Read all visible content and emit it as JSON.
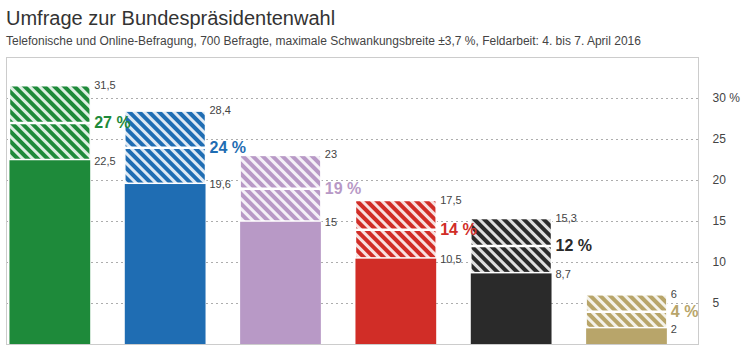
{
  "chart_data": {
    "type": "bar",
    "title": "Umfrage zur Bundespräsidentenwahl",
    "subtitle": "Telefonische und Online-Befragung, 700 Befragte, maximale Schwankungsbreite ±3,7 %, Feldarbeit: 4. bis 7. April 2016",
    "categories": [
      null,
      null,
      null,
      null,
      null,
      null
    ],
    "values": [
      27,
      24,
      19,
      14,
      12,
      4
    ],
    "value_labels": [
      "27 %",
      "24 %",
      "19 %",
      "14 %",
      "12 %",
      "4 %"
    ],
    "colors": [
      "#1e8a3a",
      "#1f6db3",
      "#b899c6",
      "#d12d27",
      "#2a2a2a",
      "#b8a56a"
    ],
    "upper": [
      31.5,
      28.4,
      23,
      17.5,
      15.3,
      6
    ],
    "upper_labels": [
      "31,5",
      "28,4",
      "23",
      "17,5",
      "15,3",
      "6"
    ],
    "lower": [
      22.5,
      19.6,
      15,
      10.5,
      8.7,
      2
    ],
    "lower_labels": [
      "22,5",
      "19,6",
      "15",
      "10,5",
      "8,7",
      "2"
    ],
    "ylim": [
      0,
      35
    ],
    "yticks": [
      5,
      10,
      15,
      20,
      25,
      {
        "value": 30,
        "label": "30 %"
      }
    ],
    "grid": true,
    "data_labels": true,
    "tick_labels": "y"
  }
}
